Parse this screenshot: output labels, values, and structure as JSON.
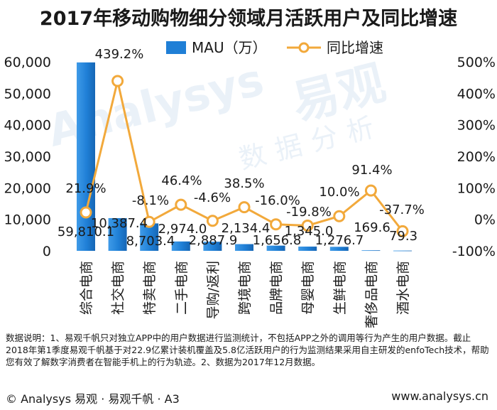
{
  "chart_data": {
    "type": "bar",
    "title": "2017年移动购物细分领域月活跃用户及同比增速",
    "categories": [
      "综合电商",
      "社交电商",
      "特卖电商",
      "二手电商",
      "导购/返利",
      "跨境电商",
      "品牌电商",
      "母婴电商",
      "生鲜电商",
      "奢侈品电商",
      "酒水电商"
    ],
    "series": [
      {
        "name": "MAU（万）",
        "type": "bar",
        "axis": "left",
        "color": "#1f7fd6",
        "values": [
          59810.1,
          10387.4,
          8703.4,
          2974.0,
          2887.9,
          2134.4,
          1656.8,
          1345.0,
          1276.7,
          169.6,
          79.3
        ],
        "labels": [
          "59,810.1",
          "10,387.4",
          "8,703.4",
          "2,974.0",
          "2,887.9",
          "2,134.4",
          "1,656.8",
          "1,345.0",
          "1,276.7",
          "169.6",
          "79.3"
        ]
      },
      {
        "name": "同比增速",
        "type": "line",
        "axis": "right",
        "color": "#f2a93b",
        "values": [
          21.9,
          439.2,
          -8.1,
          46.4,
          -4.6,
          38.5,
          -16.0,
          -19.8,
          10.0,
          91.4,
          -37.7
        ],
        "labels": [
          "21.9%",
          "439.2%",
          "-8.1%",
          "46.4%",
          "-4.6%",
          "38.5%",
          "-16.0%",
          "-19.8%",
          "10.0%",
          "91.4%",
          "-37.7%"
        ]
      }
    ],
    "y_left": {
      "ylim": [
        0,
        60000
      ],
      "ticks": [
        "0",
        "10,000",
        "20,000",
        "30,000",
        "40,000",
        "50,000",
        "60,000"
      ]
    },
    "y_right": {
      "ylim": [
        -100,
        500
      ],
      "ticks": [
        "-100%",
        "0%",
        "100%",
        "200%",
        "300%",
        "400%",
        "500%"
      ]
    },
    "legend": {
      "position": "top",
      "items": [
        "MAU（万）",
        "同比增速"
      ]
    },
    "grid": false
  },
  "note": "数据说明：1、易观千帆只对独立APP中的用户数据进行监测统计，不包括APP之外的调用等行为产生的用户数据。截止2018年第1季度易观千帆基于对22.9亿累计装机覆盖及5.8亿活跃用户的行为监测结果采用自主研发的enfoTech技术，帮助您有效了解数字消费者在智能手机上的行为轨迹。2、数据为2017年12月数据。",
  "footer": {
    "left": "© Analysys 易观 · 易观千帆 · A3",
    "right": "www.analysys.cn"
  },
  "watermark": {
    "en": "Analysys",
    "cn": "易观",
    "cn2": "数据分析"
  }
}
